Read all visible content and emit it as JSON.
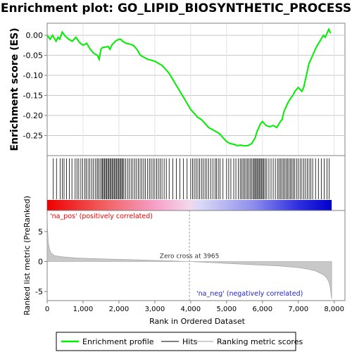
{
  "title": "Enrichment plot: GO_LIPID_BIOSYNTHETIC_PROCESS",
  "chart_data": {
    "type": "line",
    "title": "Enrichment plot: GO_LIPID_BIOSYNTHETIC_PROCESS",
    "es_panel": {
      "ylabel": "Enrichment score (ES)",
      "ylim": [
        -0.3,
        0.03
      ],
      "yticks": [
        0.0,
        -0.05,
        -0.1,
        -0.15,
        -0.2,
        -0.25
      ],
      "ytick_labels": [
        "0.00",
        "-0.05",
        "-0.10",
        "-0.15",
        "-0.20",
        "-0.25"
      ],
      "grid": true,
      "series": [
        {
          "name": "Enrichment profile",
          "color": "#00ee00",
          "x": [
            0,
            80,
            150,
            250,
            300,
            350,
            420,
            500,
            600,
            700,
            800,
            900,
            1000,
            1100,
            1200,
            1300,
            1400,
            1450,
            1500,
            1550,
            1600,
            1700,
            1750,
            1800,
            1900,
            2000,
            2050,
            2100,
            2200,
            2300,
            2400,
            2500,
            2600,
            2700,
            2800,
            2900,
            3000,
            3100,
            3200,
            3300,
            3400,
            3500,
            3600,
            3700,
            3800,
            3900,
            4000,
            4100,
            4200,
            4300,
            4400,
            4500,
            4600,
            4700,
            4800,
            4900,
            5000,
            5100,
            5200,
            5300,
            5400,
            5500,
            5600,
            5700,
            5800,
            5850,
            5900,
            5950,
            6000,
            6100,
            6200,
            6300,
            6400,
            6500,
            6550,
            6600,
            6700,
            6800,
            6850,
            6900,
            7000,
            7100,
            7150,
            7200,
            7300,
            7350,
            7400,
            7500,
            7600,
            7700,
            7750,
            7800,
            7850,
            7900
          ],
          "y": [
            0.0,
            -0.01,
            0.0,
            -0.015,
            -0.005,
            -0.01,
            0.008,
            -0.002,
            -0.01,
            -0.015,
            -0.005,
            -0.018,
            -0.025,
            -0.02,
            -0.035,
            -0.045,
            -0.05,
            -0.06,
            -0.035,
            -0.03,
            -0.03,
            -0.028,
            -0.035,
            -0.025,
            -0.015,
            -0.01,
            -0.01,
            -0.015,
            -0.02,
            -0.022,
            -0.025,
            -0.035,
            -0.05,
            -0.055,
            -0.06,
            -0.062,
            -0.065,
            -0.07,
            -0.075,
            -0.085,
            -0.095,
            -0.11,
            -0.125,
            -0.14,
            -0.155,
            -0.17,
            -0.185,
            -0.195,
            -0.205,
            -0.21,
            -0.22,
            -0.23,
            -0.235,
            -0.24,
            -0.245,
            -0.255,
            -0.265,
            -0.27,
            -0.272,
            -0.275,
            -0.274,
            -0.276,
            -0.275,
            -0.27,
            -0.255,
            -0.24,
            -0.23,
            -0.22,
            -0.215,
            -0.225,
            -0.228,
            -0.225,
            -0.23,
            -0.215,
            -0.21,
            -0.19,
            -0.17,
            -0.155,
            -0.15,
            -0.14,
            -0.13,
            -0.14,
            -0.13,
            -0.11,
            -0.07,
            -0.06,
            -0.05,
            -0.03,
            -0.015,
            0.0,
            -0.005,
            0.005,
            0.015,
            0.005
          ]
        }
      ]
    },
    "hits_panel": {
      "legend_name": "Hits",
      "hit_positions": [
        170,
        260,
        360,
        420,
        470,
        540,
        620,
        690,
        780,
        830,
        880,
        940,
        990,
        1050,
        1090,
        1140,
        1190,
        1240,
        1290,
        1340,
        1390,
        1420,
        1470,
        1510,
        1540,
        1570,
        1600,
        1630,
        1660,
        1690,
        1720,
        1750,
        1780,
        1810,
        1840,
        1870,
        1900,
        1930,
        1960,
        1990,
        2020,
        2050,
        2080,
        2110,
        2140,
        2190,
        2240,
        2290,
        2340,
        2390,
        2440,
        2490,
        2540,
        2590,
        2640,
        2690,
        2740,
        2800,
        2850,
        2900,
        2950,
        3000,
        3050,
        3100,
        3150,
        3200,
        3260,
        3320,
        3400,
        3500,
        3600,
        3700,
        3800,
        3900,
        4000,
        4050,
        4100,
        4150,
        4200,
        4250,
        4300,
        4350,
        4400,
        4450,
        4500,
        4560,
        4620,
        4680,
        4720,
        4770,
        4820,
        4900,
        5000,
        5060,
        5120,
        5200,
        5260,
        5330,
        5380,
        5420,
        5460,
        5500,
        5540,
        5580,
        5620,
        5660,
        5700,
        5740,
        5770,
        5800,
        5830,
        5860,
        5890,
        5920,
        5950,
        5980,
        6010,
        6040,
        6080,
        6120,
        6180,
        6240,
        6300,
        6360,
        6420,
        6460,
        6500,
        6540,
        6580,
        6620,
        6660,
        6700,
        6740,
        6780,
        6820,
        6860,
        6900,
        6950,
        7000,
        7050,
        7100,
        7150,
        7200,
        7250,
        7300,
        7350,
        7400,
        7480,
        7560,
        7640,
        7720,
        7800,
        7860
      ]
    },
    "rank_panel": {
      "ylabel": "Ranked list metric (PreRanked)",
      "xlabel": "Rank in Ordered Dataset",
      "legend_name": "Ranking metric scores",
      "ylim": [
        -6.5,
        8.5
      ],
      "yticks": [
        5,
        0,
        -5
      ],
      "ytick_labels": [
        "5",
        "0",
        "-5"
      ],
      "xlim": [
        0,
        8300
      ],
      "xticks": [
        0,
        1000,
        2000,
        3000,
        4000,
        5000,
        6000,
        7000,
        8000
      ],
      "xtick_labels": [
        "0",
        "1,000",
        "2,000",
        "3,000",
        "4,000",
        "5,000",
        "6,000",
        "7,000",
        "8,000"
      ],
      "n_genes": 7930,
      "metric_curve": {
        "x": [
          0,
          10,
          30,
          60,
          100,
          200,
          400,
          800,
          1500,
          2500,
          3500,
          3965,
          4500,
          5500,
          6500,
          7000,
          7300,
          7500,
          7700,
          7800,
          7850,
          7880,
          7900,
          7915,
          7930
        ],
        "y": [
          8.0,
          5.5,
          3.2,
          2.2,
          1.5,
          1.0,
          0.8,
          0.6,
          0.45,
          0.28,
          0.1,
          0.0,
          -0.15,
          -0.45,
          -0.75,
          -1.0,
          -1.3,
          -1.6,
          -2.2,
          -2.8,
          -3.4,
          -4.0,
          -4.8,
          -5.5,
          -6.2
        ]
      },
      "zero_cross_label": "Zero cross at 3965",
      "zero_cross": 3965,
      "pos_label": "'na_pos' (positively correlated)",
      "neg_label": "'na_neg' (negatively correlated)"
    },
    "legend": {
      "placement": "bottom",
      "entries": [
        "Enrichment profile",
        "Hits",
        "Ranking metric scores"
      ]
    }
  }
}
